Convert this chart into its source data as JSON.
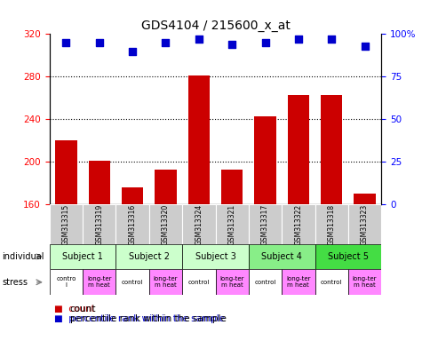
{
  "title": "GDS4104 / 215600_x_at",
  "samples": [
    "GSM313315",
    "GSM313319",
    "GSM313316",
    "GSM313320",
    "GSM313324",
    "GSM313321",
    "GSM313317",
    "GSM313322",
    "GSM313318",
    "GSM313323"
  ],
  "counts": [
    220,
    201,
    176,
    193,
    281,
    193,
    243,
    263,
    263,
    170
  ],
  "percentile_ranks": [
    95,
    95,
    90,
    95,
    97,
    94,
    95,
    97,
    97,
    93
  ],
  "ylim": [
    160,
    320
  ],
  "yticks": [
    160,
    200,
    240,
    280,
    320
  ],
  "right_yticks": [
    0,
    25,
    50,
    75,
    100
  ],
  "bar_color": "#cc0000",
  "dot_color": "#0000cc",
  "subjects": [
    {
      "label": "Subject 1",
      "cols": [
        0,
        1
      ],
      "color": "#ccffcc"
    },
    {
      "label": "Subject 2",
      "cols": [
        2,
        3
      ],
      "color": "#ccffcc"
    },
    {
      "label": "Subject 3",
      "cols": [
        4,
        5
      ],
      "color": "#ccffcc"
    },
    {
      "label": "Subject 4",
      "cols": [
        6,
        7
      ],
      "color": "#88ee88"
    },
    {
      "label": "Subject 5",
      "cols": [
        8,
        9
      ],
      "color": "#44dd44"
    }
  ],
  "stress_labels": [
    "contro\nl",
    "long-ter\nm heat",
    "control",
    "long-ter\nm heat",
    "control",
    "long-ter\nm heat",
    "control",
    "long-ter\nm heat",
    "control",
    "long-ter\nm heat"
  ],
  "stress_colors": [
    "#ffffff",
    "#ff88ff",
    "#ffffff",
    "#ff88ff",
    "#ffffff",
    "#ff88ff",
    "#ffffff",
    "#ff88ff",
    "#ffffff",
    "#ff88ff"
  ],
  "gsm_bg": "#cccccc",
  "legend_count_color": "#cc0000",
  "legend_dot_color": "#0000cc"
}
